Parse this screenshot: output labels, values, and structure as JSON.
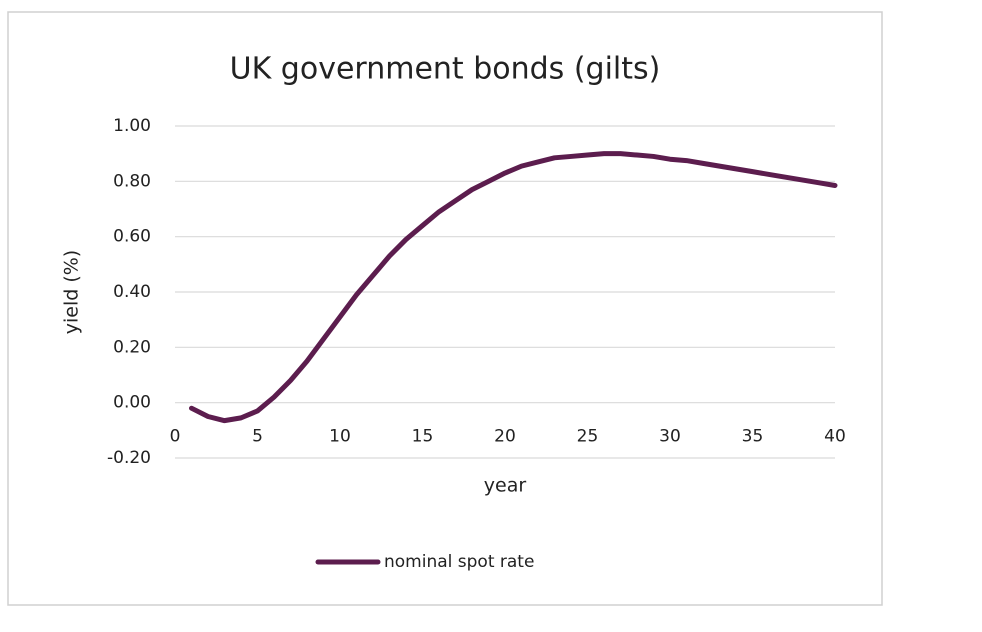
{
  "chart_data": {
    "type": "line",
    "title": "UK government  bonds (gilts)",
    "xlabel": "year",
    "ylabel": "yield (%)",
    "x": [
      1,
      2,
      3,
      4,
      5,
      6,
      7,
      8,
      9,
      10,
      11,
      12,
      13,
      14,
      15,
      16,
      17,
      18,
      19,
      20,
      21,
      22,
      23,
      24,
      25,
      26,
      27,
      28,
      29,
      30,
      31,
      32,
      33,
      34,
      35,
      36,
      37,
      38,
      39,
      40
    ],
    "series": [
      {
        "name": "nominal spot rate",
        "color": "#5c1d4e",
        "values": [
          -0.02,
          -0.05,
          -0.065,
          -0.055,
          -0.03,
          0.02,
          0.08,
          0.15,
          0.23,
          0.31,
          0.39,
          0.46,
          0.53,
          0.59,
          0.64,
          0.69,
          0.73,
          0.77,
          0.8,
          0.83,
          0.855,
          0.87,
          0.885,
          0.89,
          0.895,
          0.9,
          0.9,
          0.895,
          0.89,
          0.88,
          0.875,
          0.865,
          0.855,
          0.845,
          0.835,
          0.825,
          0.815,
          0.805,
          0.795,
          0.785
        ]
      }
    ],
    "xlim": [
      0,
      40
    ],
    "xticks": [
      0,
      5,
      10,
      15,
      20,
      25,
      30,
      35,
      40
    ],
    "ylim": [
      -0.2,
      1
    ],
    "yticks": [
      {
        "value": -0.2,
        "label": "-0.20"
      },
      {
        "value": 0,
        "label": "0.00"
      },
      {
        "value": 0.2,
        "label": "0.20"
      },
      {
        "value": 0.4,
        "label": "0.40"
      },
      {
        "value": 0.6,
        "label": "0.60"
      },
      {
        "value": 0.8,
        "label": "0.80"
      },
      {
        "value": 1,
        "label": "1.00"
      }
    ],
    "grid": true,
    "legend": "bottom"
  }
}
